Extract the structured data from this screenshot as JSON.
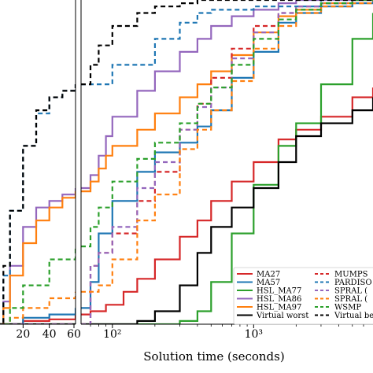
{
  "chart_data": {
    "type": "line",
    "xlabel": "Solution time (seconds)",
    "left_panel": {
      "xscale": "linear",
      "xlim": [
        0,
        60
      ],
      "x_tick_labels": [
        "20",
        "40",
        "60"
      ],
      "x_ticks": [
        20,
        40,
        60
      ]
    },
    "right_panel": {
      "xscale": "log",
      "xlim": [
        60,
        7000
      ],
      "x_tick_labels": [
        "10²",
        "10³"
      ],
      "x_ticks": [
        100,
        1000
      ]
    },
    "ylim": [
      0,
      1
    ],
    "legend": {
      "placement": "lower-right",
      "entries_col1": [
        "MA27",
        "MA57",
        "HSL_MA77",
        "HSL_MA86",
        "HSL_MA97",
        "Virtual worst"
      ],
      "entries_col2": [
        "MUMPS",
        "PARDISO",
        "SPRAL (",
        "SPRAL (",
        "WSMP",
        "Virtual be"
      ]
    },
    "series": [
      {
        "name": "MA27",
        "color": "#d62728",
        "dash": "solid",
        "x": [
          0,
          20,
          40,
          60,
          70,
          90,
          120,
          150,
          200,
          300,
          400,
          500,
          700,
          1000,
          1500,
          2000,
          3000,
          5000,
          7000
        ],
        "y": [
          0.0,
          0.01,
          0.015,
          0.03,
          0.04,
          0.06,
          0.1,
          0.14,
          0.2,
          0.27,
          0.32,
          0.38,
          0.44,
          0.5,
          0.57,
          0.6,
          0.64,
          0.7,
          0.73
        ]
      },
      {
        "name": "MA57",
        "color": "#1f77b4",
        "dash": "solid",
        "x": [
          0,
          10,
          20,
          40,
          60,
          70,
          80,
          100,
          150,
          200,
          300,
          400,
          500,
          700,
          1000,
          1500,
          2000,
          3000,
          5000,
          7000
        ],
        "y": [
          0.0,
          0.0,
          0.02,
          0.03,
          0.05,
          0.13,
          0.28,
          0.38,
          0.47,
          0.53,
          0.56,
          0.61,
          0.66,
          0.76,
          0.84,
          0.93,
          0.96,
          0.98,
          0.99,
          1.0
        ]
      },
      {
        "name": "HSL_MA77",
        "color": "#2ca02c",
        "dash": "solid",
        "x": [
          0,
          60,
          100,
          150,
          200,
          300,
          400,
          500,
          700,
          1000,
          1500,
          2000,
          3000,
          5000,
          7000
        ],
        "y": [
          0.0,
          0.0,
          0.0,
          0.0,
          0.0,
          0.01,
          0.04,
          0.13,
          0.28,
          0.43,
          0.55,
          0.62,
          0.74,
          0.88,
          0.96
        ]
      },
      {
        "name": "HSL_MA86",
        "color": "#9467bd",
        "dash": "solid",
        "x": [
          0,
          5,
          10,
          20,
          30,
          40,
          50,
          60,
          70,
          80,
          90,
          100,
          150,
          200,
          300,
          400,
          500,
          700,
          1000,
          1500,
          2000,
          3000,
          5000,
          7000
        ],
        "y": [
          0.0,
          0.07,
          0.18,
          0.3,
          0.36,
          0.38,
          0.4,
          0.42,
          0.46,
          0.52,
          0.58,
          0.64,
          0.72,
          0.78,
          0.84,
          0.88,
          0.92,
          0.95,
          0.97,
          0.99,
          1.0,
          1.0,
          1.0,
          1.0
        ]
      },
      {
        "name": "HSL_MA97",
        "color": "#ff7f0e",
        "dash": "solid",
        "x": [
          0,
          5,
          10,
          20,
          30,
          40,
          50,
          60,
          70,
          80,
          90,
          100,
          150,
          200,
          300,
          400,
          500,
          700,
          1000,
          1500,
          2000,
          3000,
          5000,
          7000
        ],
        "y": [
          0.0,
          0.05,
          0.15,
          0.25,
          0.32,
          0.36,
          0.39,
          0.41,
          0.44,
          0.48,
          0.52,
          0.55,
          0.6,
          0.65,
          0.7,
          0.74,
          0.78,
          0.83,
          0.9,
          0.95,
          0.97,
          0.99,
          1.0,
          1.0
        ]
      },
      {
        "name": "Virtual worst",
        "color": "#000000",
        "dash": "solid",
        "x": [
          0,
          60,
          80,
          100,
          150,
          200,
          300,
          400,
          500,
          700,
          1000,
          1500,
          2000,
          3000,
          5000,
          7000
        ],
        "y": [
          0.0,
          0.0,
          0.0,
          0.0,
          0.01,
          0.04,
          0.12,
          0.22,
          0.3,
          0.36,
          0.42,
          0.5,
          0.58,
          0.62,
          0.66,
          0.7
        ]
      },
      {
        "name": "MUMPS",
        "color": "#d62728",
        "dash": "dashed",
        "x": [
          0,
          60,
          70,
          80,
          100,
          150,
          200,
          300,
          400,
          500,
          700,
          1000,
          1500,
          2000,
          3000,
          5000,
          7000
        ],
        "y": [
          0.0,
          0.0,
          0.18,
          0.22,
          0.28,
          0.38,
          0.47,
          0.6,
          0.68,
          0.76,
          0.85,
          0.92,
          0.96,
          0.98,
          0.99,
          1.0,
          1.0
        ]
      },
      {
        "name": "PARDISO",
        "color": "#1f77b4",
        "dash": "dashed",
        "x": [
          0,
          5,
          10,
          20,
          30,
          40,
          50,
          60,
          100,
          200,
          300,
          400,
          500,
          1000,
          3000,
          7000
        ],
        "y": [
          0.0,
          0.15,
          0.35,
          0.55,
          0.65,
          0.7,
          0.72,
          0.74,
          0.8,
          0.88,
          0.93,
          0.96,
          0.97,
          0.98,
          1.0,
          1.0
        ]
      },
      {
        "name": "SPRAL (",
        "color": "#9467bd",
        "dash": "dashed",
        "x": [
          0,
          60,
          70,
          80,
          100,
          150,
          200,
          300,
          400,
          500,
          700,
          1000,
          1500,
          2000,
          3000,
          5000,
          7000
        ],
        "y": [
          0.0,
          0.0,
          0.18,
          0.22,
          0.3,
          0.42,
          0.5,
          0.6,
          0.67,
          0.73,
          0.82,
          0.9,
          0.96,
          0.98,
          0.99,
          1.0,
          1.0
        ]
      },
      {
        "name": "SPRAL (",
        "color": "#ff7f0e",
        "dash": "dashed",
        "x": [
          0,
          10,
          20,
          40,
          60,
          70,
          80,
          100,
          150,
          200,
          300,
          400,
          500,
          700,
          1000,
          1500,
          2000,
          3000,
          5000,
          7000
        ],
        "y": [
          0.0,
          0.02,
          0.05,
          0.08,
          0.1,
          0.1,
          0.12,
          0.2,
          0.32,
          0.4,
          0.54,
          0.6,
          0.66,
          0.75,
          0.85,
          0.92,
          0.96,
          0.98,
          0.99,
          1.0
        ]
      },
      {
        "name": "WSMP",
        "color": "#2ca02c",
        "dash": "dashed",
        "x": [
          0,
          10,
          20,
          40,
          60,
          70,
          80,
          100,
          150,
          200,
          300,
          400,
          500,
          700,
          1000,
          1500,
          2000,
          3000,
          5000,
          7000
        ],
        "y": [
          0.0,
          0.05,
          0.12,
          0.2,
          0.24,
          0.3,
          0.36,
          0.44,
          0.51,
          0.56,
          0.62,
          0.68,
          0.73,
          0.8,
          0.88,
          0.94,
          0.97,
          0.99,
          1.0,
          1.0
        ]
      },
      {
        "name": "Virtual be",
        "color": "#000000",
        "dash": "dashed",
        "x": [
          0,
          5,
          10,
          20,
          30,
          40,
          50,
          60,
          70,
          80,
          100,
          150,
          200,
          300,
          400,
          500,
          1000,
          7000
        ],
        "y": [
          0.0,
          0.18,
          0.35,
          0.55,
          0.66,
          0.7,
          0.72,
          0.74,
          0.8,
          0.86,
          0.92,
          0.96,
          0.98,
          0.99,
          1.0,
          1.0,
          1.0,
          1.0
        ]
      }
    ]
  }
}
